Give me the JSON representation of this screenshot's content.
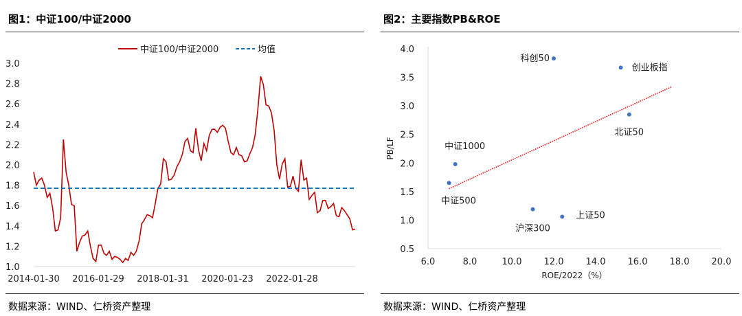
{
  "left": {
    "title": "图1：中证100/中证2000",
    "source": "数据来源：WIND、仁桥资产整理"
  },
  "right": {
    "title": "图2：主要指数PB&ROE",
    "source": "数据来源：WIND、仁桥资产整理"
  },
  "chart_data": [
    {
      "type": "line",
      "title": "图1：中证100/中证2000",
      "legend_position": "top",
      "x_tick_labels": [
        "2014-01-30",
        "2016-01-29",
        "2018-01-31",
        "2020-01-23",
        "2022-01-28"
      ],
      "y_tick_labels": [
        "1.0",
        "1.2",
        "1.4",
        "1.6",
        "1.8",
        "2.0",
        "2.2",
        "2.4",
        "2.6",
        "2.8",
        "3.0"
      ],
      "ylim": [
        1.0,
        3.0
      ],
      "grid": false,
      "series": [
        {
          "name": "中证100/中证2000",
          "color": "#c00000",
          "frequency": "monthly",
          "values": [
            1.93,
            1.8,
            1.85,
            1.87,
            1.8,
            1.68,
            1.72,
            1.58,
            1.35,
            1.36,
            1.48,
            2.25,
            1.93,
            1.8,
            1.61,
            1.6,
            1.15,
            1.24,
            1.3,
            1.31,
            1.35,
            1.2,
            1.08,
            1.05,
            1.21,
            1.21,
            1.13,
            1.11,
            1.15,
            1.07,
            1.1,
            1.09,
            1.07,
            1.04,
            1.08,
            1.06,
            1.14,
            1.11,
            1.15,
            1.25,
            1.42,
            1.46,
            1.51,
            1.5,
            1.48,
            1.62,
            1.77,
            1.81,
            2.06,
            2.03,
            1.85,
            1.86,
            1.9,
            1.98,
            2.03,
            2.1,
            2.23,
            2.26,
            2.14,
            2.12,
            2.36,
            2.15,
            2.04,
            2.21,
            2.14,
            2.29,
            2.35,
            2.35,
            2.32,
            2.37,
            2.39,
            2.36,
            2.23,
            2.12,
            2.1,
            2.17,
            2.1,
            2.09,
            2.03,
            2.04,
            2.11,
            2.17,
            2.3,
            2.55,
            2.87,
            2.79,
            2.59,
            2.58,
            2.51,
            2.34,
            2.0,
            1.86,
            2.01,
            2.06,
            1.78,
            1.79,
            1.89,
            1.77,
            1.74,
            2.05,
            1.85,
            1.87,
            1.66,
            1.7,
            1.73,
            1.53,
            1.55,
            1.65,
            1.65,
            1.57,
            1.59,
            1.62,
            1.5,
            1.49,
            1.58,
            1.55,
            1.51,
            1.47,
            1.36,
            1.37
          ]
        },
        {
          "name": "均值",
          "color": "#0070c0",
          "style": "dashed",
          "value": 1.77
        }
      ]
    },
    {
      "type": "scatter",
      "title": "图2：主要指数PB&ROE",
      "xlabel": "ROE/2022（%）",
      "ylabel": "PB/LF",
      "xlim": [
        6.0,
        20.0
      ],
      "ylim": [
        0.5,
        4.0
      ],
      "x_tick_labels": [
        "6.0",
        "8.0",
        "10.0",
        "12.0",
        "14.0",
        "16.0",
        "18.0",
        "20.0"
      ],
      "y_tick_labels": [
        "0.5",
        "1.0",
        "1.5",
        "2.0",
        "2.5",
        "3.0",
        "3.5",
        "4.0"
      ],
      "point_color": "#4472c4",
      "trendline_color": "#ff0000",
      "points": [
        {
          "label": "科创50",
          "x": 12.0,
          "y": 3.83
        },
        {
          "label": "创业板指",
          "x": 15.2,
          "y": 3.67
        },
        {
          "label": "北证50",
          "x": 15.6,
          "y": 2.85
        },
        {
          "label": "中证1000",
          "x": 7.3,
          "y": 1.98
        },
        {
          "label": "中证500",
          "x": 7.0,
          "y": 1.65
        },
        {
          "label": "沪深300",
          "x": 11.0,
          "y": 1.19
        },
        {
          "label": "上证50",
          "x": 12.4,
          "y": 1.06
        }
      ],
      "trendline": {
        "type": "linear",
        "from": [
          7.0,
          1.55
        ],
        "to": [
          17.6,
          3.33
        ]
      }
    }
  ]
}
